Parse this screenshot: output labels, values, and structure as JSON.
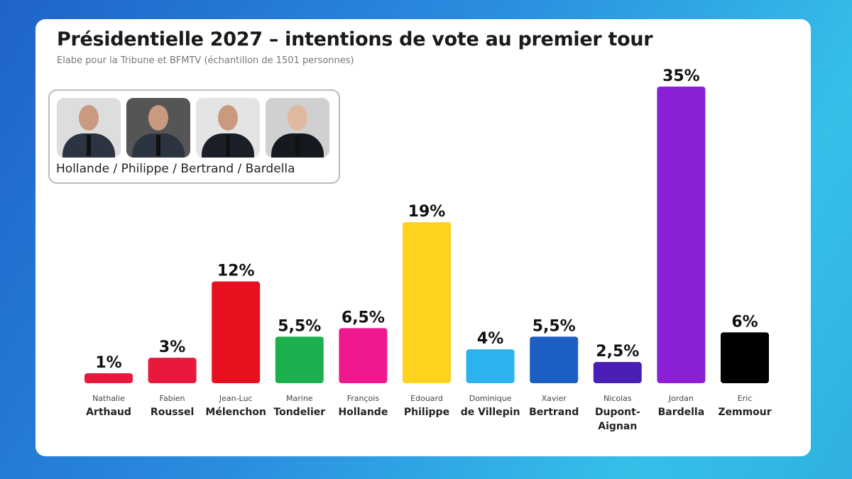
{
  "chart_data": {
    "type": "bar",
    "title": "Présidentielle 2027 – intentions de vote au premier tour",
    "subtitle": "Elabe pour la Tribune et  BFMTV (échantillon de 1501 personnes)",
    "categories": [
      {
        "first": "Nathalie",
        "last": "Arthaud"
      },
      {
        "first": "Fabien",
        "last": "Roussel"
      },
      {
        "first": "Jean-Luc",
        "last": "Mélenchon"
      },
      {
        "first": "Marine",
        "last": "Tondelier"
      },
      {
        "first": "François",
        "last": "Hollande"
      },
      {
        "first": "Edouard",
        "last": "Philippe"
      },
      {
        "first": "Dominique",
        "last": "de Villepin"
      },
      {
        "first": "Xavier",
        "last": "Bertrand"
      },
      {
        "first": "Nicolas",
        "last": "Dupont-Aignan"
      },
      {
        "first": "Jordan",
        "last": "Bardella"
      },
      {
        "first": "Eric",
        "last": "Zemmour"
      }
    ],
    "values": [
      1,
      3,
      12,
      5.5,
      6.5,
      19,
      4,
      5.5,
      2.5,
      35,
      6
    ],
    "value_labels": [
      "1%",
      "3%",
      "12%",
      "5,5%",
      "6,5%",
      "19%",
      "4%",
      "5,5%",
      "2,5%",
      "35%",
      "6%"
    ],
    "colors": [
      "#e8193c",
      "#e8193c",
      "#e8101e",
      "#1db04e",
      "#f0188e",
      "#ffd21f",
      "#2bb3f0",
      "#1c5fc4",
      "#4a1fb8",
      "#8a1fd6",
      "#000000"
    ],
    "ylim": [
      0,
      35
    ],
    "grid": false,
    "legend": "none"
  },
  "hypothesis_panel": {
    "label": "Hollande / Philippe / Bertrand / Bardella",
    "photos": [
      "Hollande",
      "Philippe",
      "Bertrand",
      "Bardella"
    ]
  }
}
